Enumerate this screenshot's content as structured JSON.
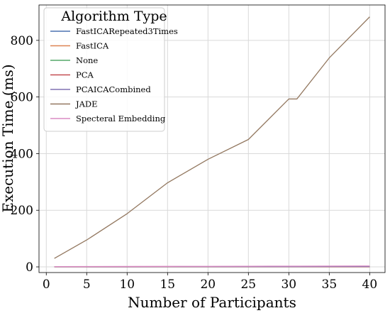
{
  "chart_data": {
    "type": "line",
    "xlabel": "Number of Participants",
    "ylabel": "Execution Time (ms)",
    "xlim": [
      -0.9,
      41.9
    ],
    "ylim": [
      -20,
      925
    ],
    "xticks": [
      0,
      5,
      10,
      15,
      20,
      25,
      30,
      35,
      40
    ],
    "yticks": [
      0,
      200,
      400,
      600,
      800
    ],
    "grid": true,
    "legend": {
      "title": "Algorithm Type",
      "placement": "top-left"
    },
    "series": [
      {
        "name": "FastICARepeated3Times",
        "color": "#4c72b0",
        "x": [
          1,
          5,
          10,
          15,
          20,
          25,
          30,
          31,
          35,
          40
        ],
        "y": [
          0.5,
          0.5,
          0.6,
          0.7,
          0.8,
          0.9,
          1.0,
          1.0,
          1.1,
          1.2
        ]
      },
      {
        "name": "FastICA",
        "color": "#dd8452",
        "x": [
          1,
          5,
          10,
          15,
          20,
          25,
          30,
          31,
          35,
          40
        ],
        "y": [
          0.3,
          0.3,
          0.4,
          0.4,
          0.5,
          0.5,
          0.6,
          0.6,
          0.6,
          0.7
        ]
      },
      {
        "name": "None",
        "color": "#55a868",
        "x": [
          1,
          5,
          10,
          15,
          20,
          25,
          30,
          31,
          35,
          40
        ],
        "y": [
          0,
          0,
          0,
          0,
          0,
          0,
          0,
          0,
          0,
          0
        ]
      },
      {
        "name": "PCA",
        "color": "#c44e52",
        "x": [
          1,
          5,
          10,
          15,
          20,
          25,
          30,
          31,
          35,
          40
        ],
        "y": [
          0.2,
          0.2,
          0.2,
          0.3,
          0.3,
          0.3,
          0.3,
          0.3,
          0.4,
          0.4
        ]
      },
      {
        "name": "PCAICACombined",
        "color": "#8172b3",
        "x": [
          1,
          5,
          10,
          15,
          20,
          25,
          30,
          31,
          35,
          40
        ],
        "y": [
          0.6,
          0.7,
          0.8,
          0.9,
          1.0,
          1.1,
          1.2,
          1.2,
          1.3,
          1.4
        ]
      },
      {
        "name": "JADE",
        "color": "#937860",
        "x": [
          1,
          5,
          10,
          15,
          20,
          25,
          30,
          31,
          35,
          40
        ],
        "y": [
          30,
          95,
          188,
          297,
          380,
          450,
          593,
          593,
          738,
          883
        ]
      },
      {
        "name": "Specteral Embedding",
        "color": "#da8bc3",
        "x": [
          1,
          5,
          10,
          15,
          20,
          25,
          30,
          31,
          35,
          40
        ],
        "y": [
          1.0,
          1.2,
          1.5,
          1.8,
          2.0,
          2.3,
          2.6,
          2.6,
          2.9,
          3.2
        ]
      }
    ]
  }
}
